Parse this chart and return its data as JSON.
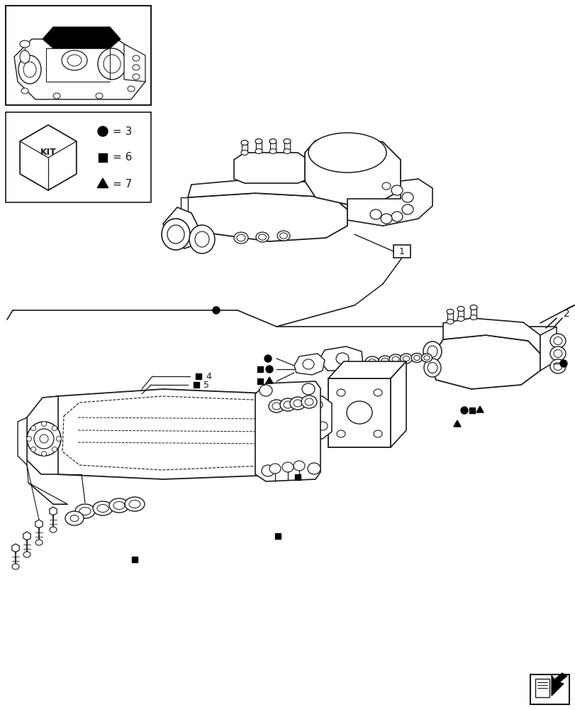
{
  "bg_color": "#ffffff",
  "line_color": "#1a1a1a",
  "fig_width": 8.12,
  "fig_height": 10.0,
  "dpi": 100,
  "kit_circle": "3",
  "kit_square": "6",
  "kit_triangle": "7",
  "item_labels": [
    "1",
    "2",
    "4",
    "5"
  ]
}
